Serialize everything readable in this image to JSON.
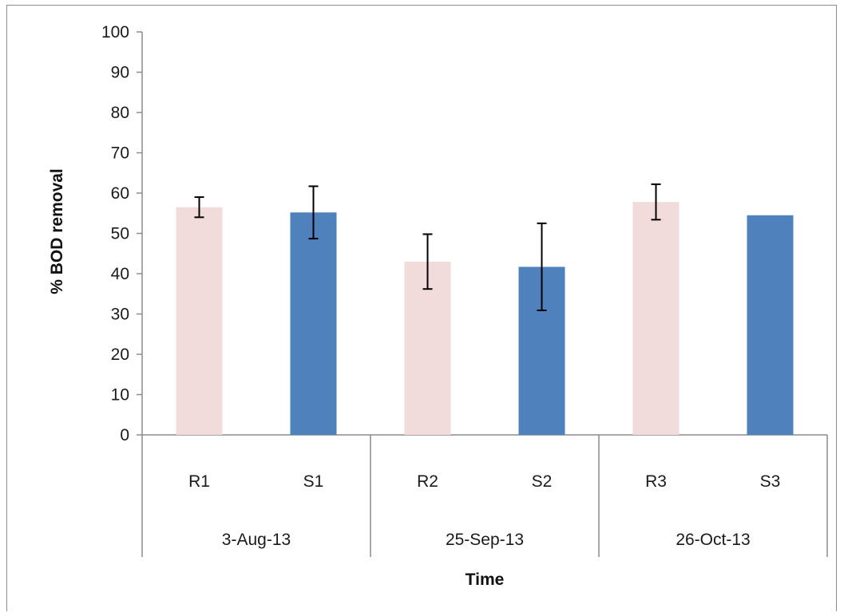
{
  "chart_data": {
    "type": "bar",
    "title": "",
    "xlabel": "Time",
    "ylabel": "% BOD removal",
    "ylim": [
      0,
      100
    ],
    "yticks": [
      0,
      10,
      20,
      30,
      40,
      50,
      60,
      70,
      80,
      90,
      100
    ],
    "grid": false,
    "legend": "none",
    "groups": [
      {
        "label": "3-Aug-13",
        "categories": [
          "R1",
          "S1"
        ]
      },
      {
        "label": "25-Sep-13",
        "categories": [
          "R2",
          "S2"
        ]
      },
      {
        "label": "26-Oct-13",
        "categories": [
          "R3",
          "S3"
        ]
      }
    ],
    "bars": [
      {
        "category": "R1",
        "group": "3-Aug-13",
        "value": 56.5,
        "error": 2.5,
        "color": "#f2dcdb"
      },
      {
        "category": "S1",
        "group": "3-Aug-13",
        "value": 55.2,
        "error": 6.5,
        "color": "#4f81bd"
      },
      {
        "category": "R2",
        "group": "25-Sep-13",
        "value": 43.0,
        "error": 6.8,
        "color": "#f2dcdb"
      },
      {
        "category": "S2",
        "group": "25-Sep-13",
        "value": 41.7,
        "error": 10.8,
        "color": "#4f81bd"
      },
      {
        "category": "R3",
        "group": "26-Oct-13",
        "value": 57.8,
        "error": 4.4,
        "color": "#f2dcdb"
      },
      {
        "category": "S3",
        "group": "26-Oct-13",
        "value": 54.5,
        "error": 0,
        "color": "#4f81bd"
      }
    ],
    "colors": {
      "R": "#f2dcdb",
      "S": "#4f81bd",
      "axis": "#8c8c8c",
      "errorbar": "#000000"
    }
  }
}
